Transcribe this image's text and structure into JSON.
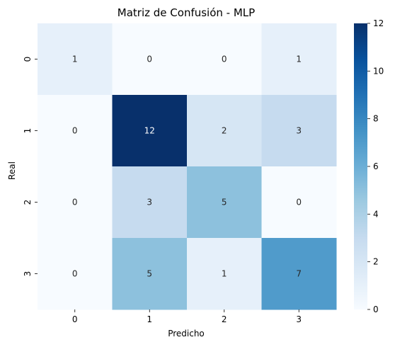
{
  "chart_data": {
    "type": "heatmap",
    "title": "Matriz de Confusión - MLP",
    "xlabel": "Predicho",
    "ylabel": "Real",
    "x_categories": [
      "0",
      "1",
      "2",
      "3"
    ],
    "y_categories": [
      "0",
      "1",
      "2",
      "3"
    ],
    "values": [
      [
        1,
        0,
        0,
        1
      ],
      [
        0,
        12,
        2,
        3
      ],
      [
        0,
        3,
        5,
        0
      ],
      [
        0,
        5,
        1,
        7
      ]
    ],
    "colorbar": {
      "min": 0,
      "max": 12,
      "ticks": [
        "0",
        "2",
        "4",
        "6",
        "8",
        "10",
        "12"
      ]
    },
    "colormap": "Blues"
  }
}
